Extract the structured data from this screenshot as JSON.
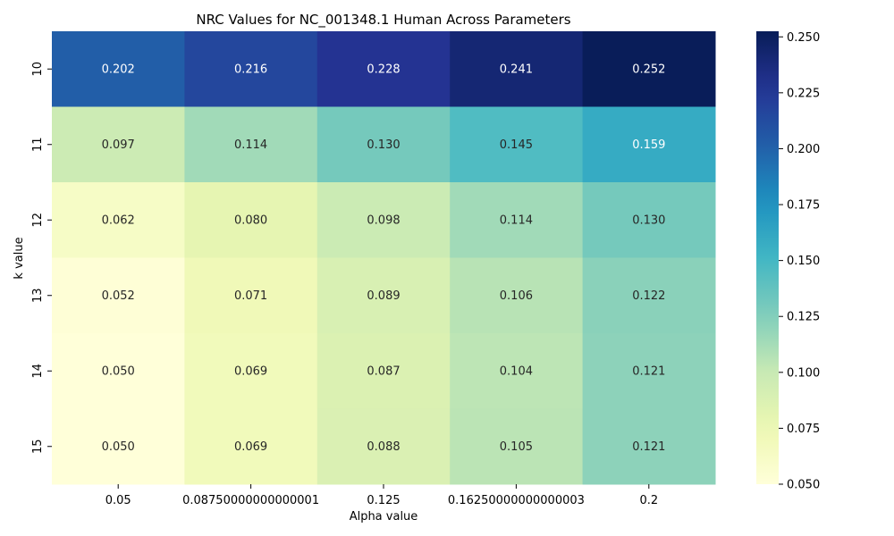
{
  "chart_data": {
    "type": "heatmap",
    "title": "NRC Values for NC_001348.1 Human Across Parameters",
    "xlabel": "Alpha value",
    "ylabel": "k value",
    "x_categories": [
      "0.05",
      "0.08750000000000001",
      "0.125",
      "0.16250000000000003",
      "0.2"
    ],
    "y_categories": [
      "10",
      "11",
      "12",
      "13",
      "14",
      "15"
    ],
    "values": [
      [
        0.202,
        0.216,
        0.228,
        0.241,
        0.252
      ],
      [
        0.097,
        0.114,
        0.13,
        0.145,
        0.159
      ],
      [
        0.062,
        0.08,
        0.098,
        0.114,
        0.13
      ],
      [
        0.052,
        0.071,
        0.089,
        0.106,
        0.122
      ],
      [
        0.05,
        0.069,
        0.087,
        0.104,
        0.121
      ],
      [
        0.05,
        0.069,
        0.088,
        0.105,
        0.121
      ]
    ],
    "cell_labels": [
      [
        "0.202",
        "0.216",
        "0.228",
        "0.241",
        "0.252"
      ],
      [
        "0.097",
        "0.114",
        "0.130",
        "0.145",
        "0.159"
      ],
      [
        "0.062",
        "0.080",
        "0.098",
        "0.114",
        "0.130"
      ],
      [
        "0.052",
        "0.071",
        "0.089",
        "0.106",
        "0.122"
      ],
      [
        "0.050",
        "0.069",
        "0.087",
        "0.104",
        "0.121"
      ],
      [
        "0.050",
        "0.069",
        "0.088",
        "0.105",
        "0.121"
      ]
    ],
    "colormap": "YlGnBu",
    "colorbar": {
      "range": [
        0.05,
        0.2525
      ],
      "ticks": [
        0.05,
        0.075,
        0.1,
        0.125,
        0.15,
        0.175,
        0.2,
        0.225,
        0.25
      ],
      "tick_labels": [
        "0.050",
        "0.075",
        "0.100",
        "0.125",
        "0.150",
        "0.175",
        "0.200",
        "0.225",
        "0.250"
      ]
    }
  }
}
